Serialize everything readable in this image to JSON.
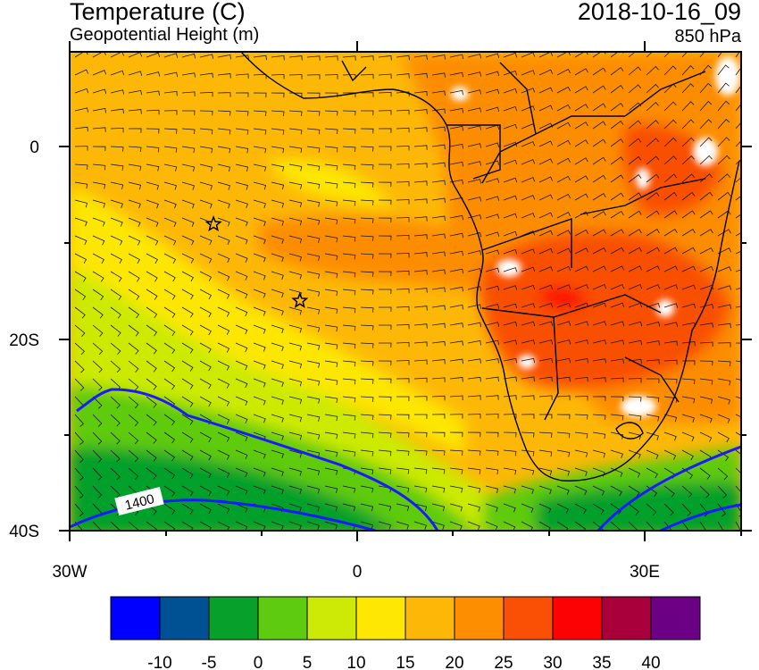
{
  "header": {
    "title": "Temperature (C)",
    "subtitle": "Geopotential Height (m)",
    "datetime": "2018-10-16_09",
    "level": "850 hPa"
  },
  "map": {
    "lon_labels": [
      "30W",
      "0",
      "30E"
    ],
    "lat_labels": [
      "0",
      "20S",
      "40S"
    ],
    "contour_label": "1400",
    "markers": [
      {
        "name": "star-marker-north",
        "lon": -15,
        "lat": -8
      },
      {
        "name": "star-marker-south",
        "lon": -6,
        "lat": -16
      }
    ]
  },
  "colorbar": {
    "colors": [
      "#0000ff",
      "#005193",
      "#06a02a",
      "#5ecb11",
      "#ccea05",
      "#fde703",
      "#fdb807",
      "#fd8d01",
      "#f95006",
      "#fd0204",
      "#a9003c",
      "#6c0085"
    ],
    "tick_labels": [
      "-10",
      "-5",
      "0",
      "5",
      "10",
      "15",
      "20",
      "25",
      "30",
      "35",
      "40"
    ]
  },
  "colors": {
    "ocean_warm": "#fdb807",
    "heat_core": "#f95006",
    "height_contour": "#1a1aff",
    "coastline": "#000000"
  }
}
